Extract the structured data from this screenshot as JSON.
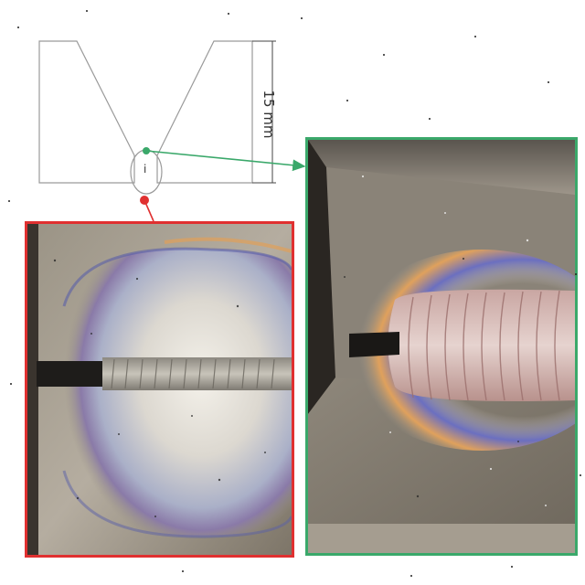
{
  "diagram": {
    "dimension_label": "15 mm",
    "detail_marker": "i"
  },
  "colors": {
    "red_frame": "#e03030",
    "green_frame": "#3aa86a",
    "outline": "#9a9a9a",
    "dimension": "#444444"
  },
  "panels": {
    "root_pass": {
      "frame_color": "red",
      "content": "weld-root-pass-photo"
    },
    "full_view": {
      "frame_color": "green",
      "content": "weld-bead-groove-photo"
    }
  }
}
